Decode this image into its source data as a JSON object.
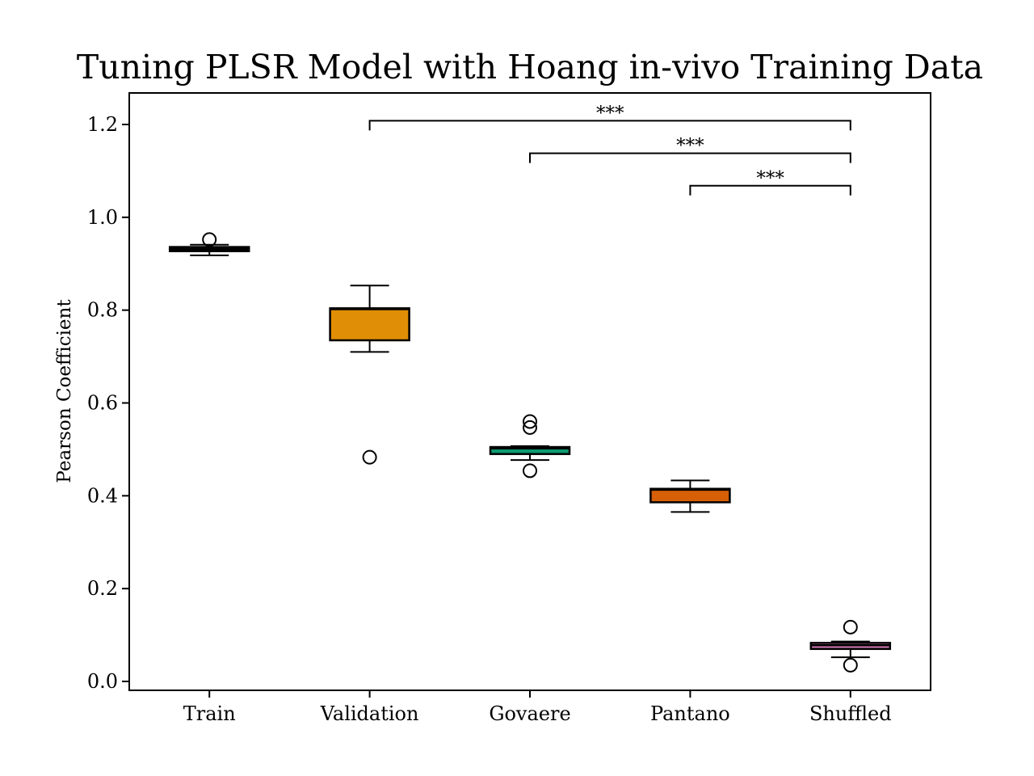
{
  "chart_data": {
    "type": "box",
    "title": "Tuning PLSR Model with Hoang in-vivo Training Data",
    "xlabel": "",
    "ylabel": "Pearson Coefficient",
    "ylim": [
      -0.02,
      1.27
    ],
    "yticks": [
      "0.0",
      "0.2",
      "0.4",
      "0.6",
      "0.8",
      "1.0",
      "1.2"
    ],
    "ytick_values": [
      0.0,
      0.2,
      0.4,
      0.6,
      0.8,
      1.0,
      1.2
    ],
    "categories": [
      "Train",
      "Validation",
      "Govaere",
      "Pantano",
      "Shuffled"
    ],
    "boxes": [
      {
        "name": "Train",
        "whisker_low": 0.918,
        "q1": 0.927,
        "median": 0.931,
        "q3": 0.936,
        "whisker_high": 0.941,
        "outliers": [
          0.952
        ],
        "color": "#0b0b0b"
      },
      {
        "name": "Validation",
        "whisker_low": 0.71,
        "q1": 0.735,
        "median": 0.802,
        "q3": 0.804,
        "whisker_high": 0.853,
        "outliers": [
          0.483
        ],
        "color": "#e08e05"
      },
      {
        "name": "Govaere",
        "whisker_low": 0.477,
        "q1": 0.49,
        "median": 0.502,
        "q3": 0.505,
        "whisker_high": 0.507,
        "outliers": [
          0.56,
          0.547,
          0.454
        ],
        "color": "#0e9a72"
      },
      {
        "name": "Pantano",
        "whisker_low": 0.365,
        "q1": 0.386,
        "median": 0.413,
        "q3": 0.415,
        "whisker_high": 0.433,
        "outliers": [],
        "color": "#d75f06"
      },
      {
        "name": "Shuffled",
        "whisker_low": 0.052,
        "q1": 0.07,
        "median": 0.078,
        "q3": 0.083,
        "whisker_high": 0.086,
        "outliers": [
          0.117,
          0.035
        ],
        "color": "#cf78b5"
      }
    ],
    "significance": [
      {
        "from": "Validation",
        "to": "Shuffled",
        "label": "***",
        "y": 1.208
      },
      {
        "from": "Govaere",
        "to": "Shuffled",
        "label": "***",
        "y": 1.138
      },
      {
        "from": "Pantano",
        "to": "Shuffled",
        "label": "***",
        "y": 1.068
      }
    ]
  }
}
